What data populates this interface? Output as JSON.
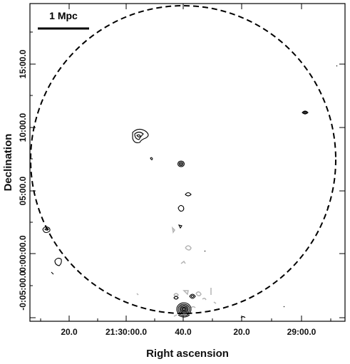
{
  "chart_data": {
    "type": "contour",
    "xlabel": "Right ascension",
    "ylabel": "Declination",
    "x_tick_labels": [
      "20.0",
      "21:30:00.0",
      "40.0",
      "20.0",
      "29:00.0"
    ],
    "y_tick_labels": [
      "15:00.0",
      "10:00.0",
      "05:00.0",
      "0:00:00.0",
      "-0:05:00.0"
    ],
    "scale_bar": {
      "label": "1 Mpc"
    },
    "grid": false,
    "colors": {
      "positive_contours": "#000000",
      "negative_contours": "#b4b4b4",
      "circle": "#000000",
      "frame": "#000000"
    }
  }
}
